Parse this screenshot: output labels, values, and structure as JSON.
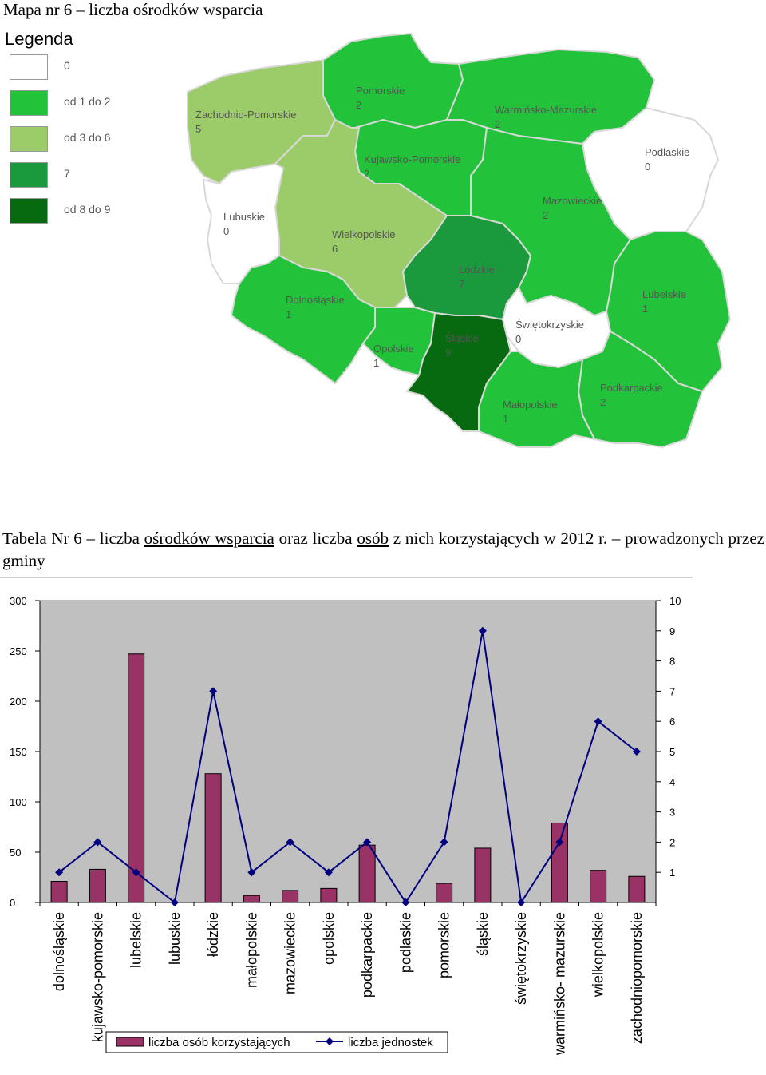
{
  "map": {
    "title": "Mapa nr 6 – liczba ośrodków wsparcia",
    "legend_title": "Legenda",
    "legend": [
      {
        "label": "0",
        "color": "#ffffff"
      },
      {
        "label": "od 1 do 2",
        "color": "#22c23a"
      },
      {
        "label": "od 3 do 6",
        "color": "#9ccc6a"
      },
      {
        "label": "7",
        "color": "#1a9a3c"
      },
      {
        "label": "od 8 do 9",
        "color": "#086a10"
      }
    ],
    "regions": [
      {
        "name": "Pomorskie",
        "value": "2",
        "color": "#22c23a"
      },
      {
        "name": "Zachodnio-Pomorskie",
        "value": "5",
        "color": "#9ccc6a"
      },
      {
        "name": "Warmińsko-Mazurskie",
        "value": "2",
        "color": "#22c23a"
      },
      {
        "name": "Kujawsko-Pomorskie",
        "value": "2",
        "color": "#22c23a"
      },
      {
        "name": "Podlaskie",
        "value": "0",
        "color": "#ffffff"
      },
      {
        "name": "Lubuskie",
        "value": "0",
        "color": "#ffffff"
      },
      {
        "name": "Wielkopolskie",
        "value": "6",
        "color": "#9ccc6a"
      },
      {
        "name": "Mazowieckie",
        "value": "2",
        "color": "#22c23a"
      },
      {
        "name": "Łódzkie",
        "value": "7",
        "color": "#1a9a3c"
      },
      {
        "name": "Dolnośląskie",
        "value": "1",
        "color": "#22c23a"
      },
      {
        "name": "Lubelskie",
        "value": "1",
        "color": "#22c23a"
      },
      {
        "name": "Świętokrzyskie",
        "value": "0",
        "color": "#ffffff"
      },
      {
        "name": "Śląskie",
        "value": "9",
        "color": "#086a10"
      },
      {
        "name": "Opolskie",
        "value": "1",
        "color": "#22c23a"
      },
      {
        "name": "Podkarpackie",
        "value": "2",
        "color": "#22c23a"
      },
      {
        "name": "Małopolskie",
        "value": "1",
        "color": "#22c23a"
      }
    ]
  },
  "caption": {
    "part1": "Tabela Nr 6 – liczba ",
    "u1": "ośrodków wsparcia",
    "part2": " oraz liczba ",
    "u2": "osób",
    "part3": " z nich korzystających w 2012 r. – prowadzonych przez gminy"
  },
  "chart_data": {
    "type": "bar",
    "categories": [
      "dolnośląskie",
      "kujawsko-pomorskie",
      "lubelskie",
      "lubuskie",
      "łódzkie",
      "małopolskie",
      "mazowieckie",
      "opolskie",
      "podkarpackie",
      "podlaskie",
      "pomorskie",
      "śląskie",
      "świętokrzyskie",
      "warmińsko- mazurskie",
      "wielkopolskie",
      "zachodniopomorskie"
    ],
    "series": [
      {
        "name": "liczba osób korzystających",
        "type": "bar",
        "axis": "left",
        "color": "#993366",
        "values": [
          21,
          33,
          247,
          0,
          128,
          7,
          12,
          14,
          57,
          0,
          19,
          54,
          0,
          79,
          32,
          26
        ]
      },
      {
        "name": "liczba jednostek",
        "type": "line",
        "axis": "right",
        "color": "#000080",
        "values": [
          1,
          2,
          1,
          0,
          7,
          1,
          2,
          1,
          2,
          0,
          2,
          9,
          0,
          2,
          6,
          5
        ]
      }
    ],
    "ylim_left": [
      0,
      300
    ],
    "yticks_left": [
      0,
      50,
      100,
      150,
      200,
      250,
      300
    ],
    "ylim_right": [
      0,
      10
    ],
    "yticks_right": [
      1,
      2,
      3,
      4,
      5,
      6,
      7,
      8,
      9,
      10
    ],
    "plot_background": "#c0c0c0",
    "grid": false,
    "legend_position": "bottom"
  }
}
